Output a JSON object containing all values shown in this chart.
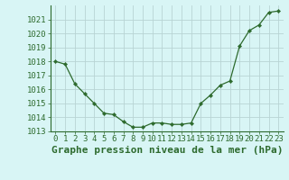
{
  "x": [
    0,
    1,
    2,
    3,
    4,
    5,
    6,
    7,
    8,
    9,
    10,
    11,
    12,
    13,
    14,
    15,
    16,
    17,
    18,
    19,
    20,
    21,
    22,
    23
  ],
  "y": [
    1018.0,
    1017.8,
    1016.4,
    1015.7,
    1015.0,
    1014.3,
    1014.2,
    1013.7,
    1013.3,
    1013.3,
    1013.6,
    1013.6,
    1013.5,
    1013.5,
    1013.6,
    1015.0,
    1015.6,
    1016.3,
    1016.6,
    1019.1,
    1020.2,
    1020.6,
    1021.5,
    1021.6
  ],
  "line_color": "#2d6a2d",
  "marker_color": "#2d6a2d",
  "bg_color": "#d8f5f5",
  "grid_color": "#b8d4d4",
  "xlabel": "Graphe pression niveau de la mer (hPa)",
  "xlabel_fontsize": 8,
  "ylim": [
    1013.0,
    1022.0
  ],
  "xlim": [
    -0.5,
    23.5
  ],
  "y_ticks": [
    1013,
    1014,
    1015,
    1016,
    1017,
    1018,
    1019,
    1020,
    1021
  ],
  "x_ticks": [
    0,
    1,
    2,
    3,
    4,
    5,
    6,
    7,
    8,
    9,
    10,
    11,
    12,
    13,
    14,
    15,
    16,
    17,
    18,
    19,
    20,
    21,
    22,
    23
  ],
  "tick_fontsize": 6.5
}
